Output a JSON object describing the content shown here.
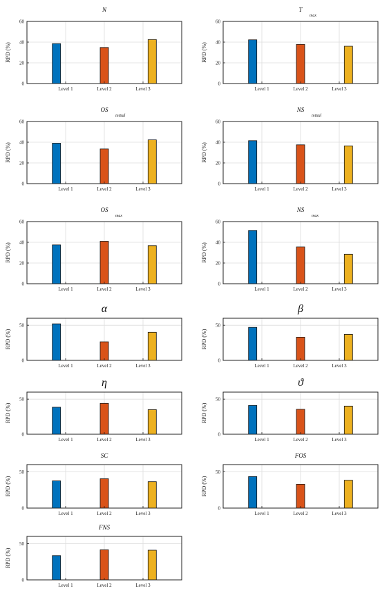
{
  "colors": {
    "Level 1": "#0072BD",
    "Level 2": "#D95319",
    "Level 3": "#EDB120"
  },
  "chart_data": [
    {
      "type": "bar",
      "title": "N",
      "title_sub": "",
      "ylabel": "RPD (%)",
      "categories": [
        "Level 1",
        "Level 2",
        "Level 3"
      ],
      "values": [
        38.5,
        34.8,
        42.5
      ],
      "ylim": [
        0,
        60
      ],
      "yticks": [
        0,
        20,
        40,
        60
      ],
      "grid": true
    },
    {
      "type": "bar",
      "title": "T",
      "title_sub": "max",
      "ylabel": "RPD (%)",
      "categories": [
        "Level 1",
        "Level 2",
        "Level 3"
      ],
      "values": [
        42.2,
        37.8,
        36.0
      ],
      "ylim": [
        0,
        60
      ],
      "yticks": [
        0,
        20,
        40,
        60
      ],
      "grid": true
    },
    {
      "type": "bar",
      "title": "OS",
      "title_sub": "initial",
      "ylabel": "RPD (%)",
      "categories": [
        "Level 1",
        "Level 2",
        "Level 3"
      ],
      "values": [
        39.0,
        33.5,
        42.3
      ],
      "ylim": [
        0,
        60
      ],
      "yticks": [
        0,
        20,
        40,
        60
      ],
      "grid": true
    },
    {
      "type": "bar",
      "title": "NS",
      "title_sub": "initial",
      "ylabel": "RPD (%)",
      "categories": [
        "Level 1",
        "Level 2",
        "Level 3"
      ],
      "values": [
        41.5,
        37.5,
        36.5
      ],
      "ylim": [
        0,
        60
      ],
      "yticks": [
        0,
        20,
        40,
        60
      ],
      "grid": true
    },
    {
      "type": "bar",
      "title": "OS",
      "title_sub": "max",
      "ylabel": "RPD (%)",
      "categories": [
        "Level 1",
        "Level 2",
        "Level 3"
      ],
      "values": [
        37.5,
        41.0,
        36.8
      ],
      "ylim": [
        0,
        60
      ],
      "yticks": [
        0,
        20,
        40,
        60
      ],
      "grid": true
    },
    {
      "type": "bar",
      "title": "NS",
      "title_sub": "max",
      "ylabel": "RPD (%)",
      "categories": [
        "Level 1",
        "Level 2",
        "Level 3"
      ],
      "values": [
        51.5,
        35.5,
        28.5
      ],
      "ylim": [
        0,
        60
      ],
      "yticks": [
        0,
        20,
        40,
        60
      ],
      "grid": true
    },
    {
      "type": "bar",
      "title": "α",
      "title_sub": "",
      "ylabel": "RPD (%)",
      "categories": [
        "Level 1",
        "Level 2",
        "Level 3"
      ],
      "values": [
        52.0,
        26.5,
        40.0
      ],
      "ylim": [
        0,
        60
      ],
      "yticks": [
        0,
        50
      ],
      "grid": true
    },
    {
      "type": "bar",
      "title": "β",
      "title_sub": "",
      "ylabel": "RPD (%)",
      "categories": [
        "Level 1",
        "Level 2",
        "Level 3"
      ],
      "values": [
        47.0,
        33.0,
        37.0
      ],
      "ylim": [
        0,
        60
      ],
      "yticks": [
        0,
        50
      ],
      "grid": true
    },
    {
      "type": "bar",
      "title": "η",
      "title_sub": "",
      "ylabel": "RPD (%)",
      "categories": [
        "Level 1",
        "Level 2",
        "Level 3"
      ],
      "values": [
        38.5,
        44.0,
        35.0
      ],
      "ylim": [
        0,
        60
      ],
      "yticks": [
        0,
        50
      ],
      "grid": true
    },
    {
      "type": "bar",
      "title": "ϑ",
      "title_sub": "",
      "ylabel": "RPD (%)",
      "categories": [
        "Level 1",
        "Level 2",
        "Level 3"
      ],
      "values": [
        41.0,
        35.5,
        40.0
      ],
      "ylim": [
        0,
        60
      ],
      "yticks": [
        0,
        50
      ],
      "grid": true
    },
    {
      "type": "bar",
      "title": "SC",
      "title_sub": "",
      "ylabel": "RPD (%)",
      "categories": [
        "Level 1",
        "Level 2",
        "Level 3"
      ],
      "values": [
        37.5,
        40.5,
        36.5
      ],
      "ylim": [
        0,
        60
      ],
      "yticks": [
        0,
        50
      ],
      "grid": true
    },
    {
      "type": "bar",
      "title": "FOS",
      "title_sub": "",
      "ylabel": "RPD (%)",
      "categories": [
        "Level 1",
        "Level 2",
        "Level 3"
      ],
      "values": [
        43.5,
        33.0,
        38.5
      ],
      "ylim": [
        0,
        60
      ],
      "yticks": [
        0,
        50
      ],
      "grid": true
    },
    {
      "type": "bar",
      "title": "FNS",
      "title_sub": "",
      "ylabel": "RPD (%)",
      "categories": [
        "Level 1",
        "Level 2",
        "Level 3"
      ],
      "values": [
        33.5,
        41.5,
        41.0
      ],
      "ylim": [
        0,
        60
      ],
      "yticks": [
        0,
        50
      ],
      "grid": true
    }
  ]
}
